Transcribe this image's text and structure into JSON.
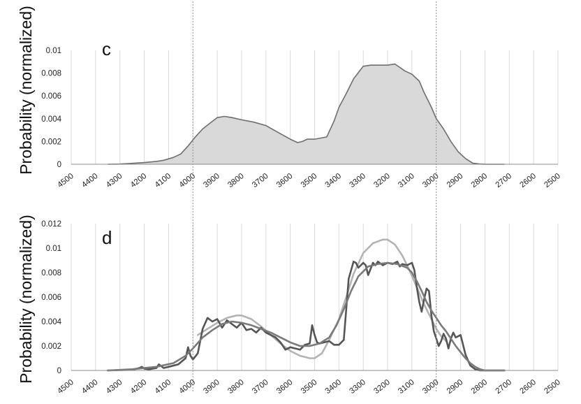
{
  "chart_data": [
    {
      "type": "area",
      "panel_label": "c",
      "ylabel": "Probability (normalized)",
      "xlim": [
        4500,
        2500
      ],
      "x_reversed": true,
      "ylim": [
        0,
        0.01
      ],
      "xticks": [
        "4500",
        "4400",
        "4300",
        "4200",
        "4100",
        "4000",
        "3900",
        "3800",
        "3700",
        "3600",
        "3500",
        "3400",
        "3300",
        "3200",
        "3100",
        "3000",
        "2900",
        "2800",
        "2700",
        "2600",
        "2500"
      ],
      "yticks": [
        "0",
        "0.002",
        "0.004",
        "0.006",
        "0.008",
        "0.01"
      ],
      "grid": "vertical",
      "reference_lines_x": [
        4000,
        3000
      ],
      "fill_color": "#d9d9d9",
      "line_color": "#6e6e6e",
      "series": [
        {
          "x": [
            4350,
            4300,
            4250,
            4200,
            4150,
            4120,
            4080,
            4050,
            4020,
            3990,
            3960,
            3930,
            3900,
            3870,
            3840,
            3800,
            3750,
            3700,
            3650,
            3600,
            3570,
            3550,
            3530,
            3500,
            3450,
            3420,
            3400,
            3370,
            3340,
            3300,
            3270,
            3250,
            3230,
            3200,
            3170,
            3150,
            3130,
            3100,
            3070,
            3050,
            3020,
            3000,
            2970,
            2940,
            2910,
            2880,
            2850,
            2820,
            2790,
            2760,
            2720
          ],
          "y": [
            0,
            2e-05,
            8e-05,
            0.00015,
            0.00025,
            0.00035,
            0.0006,
            0.0009,
            0.0016,
            0.0024,
            0.0031,
            0.0036,
            0.0041,
            0.0042,
            0.0041,
            0.0039,
            0.0037,
            0.0034,
            0.0028,
            0.0022,
            0.0019,
            0.002,
            0.0022,
            0.0022,
            0.0024,
            0.0038,
            0.005,
            0.0062,
            0.0075,
            0.0086,
            0.0087,
            0.0087,
            0.0087,
            0.0087,
            0.0088,
            0.0085,
            0.0082,
            0.0079,
            0.0073,
            0.0063,
            0.005,
            0.004,
            0.0031,
            0.002,
            0.0011,
            0.0005,
            0.0001,
            2e-05,
            0,
            0,
            0
          ]
        }
      ]
    },
    {
      "type": "line",
      "panel_label": "d",
      "ylabel": "Probability (normalized)",
      "xlim": [
        4500,
        2500
      ],
      "x_reversed": true,
      "ylim": [
        0,
        0.012
      ],
      "xticks": [
        "4500",
        "4400",
        "4300",
        "4200",
        "4100",
        "4000",
        "3900",
        "3800",
        "3700",
        "3600",
        "3500",
        "3400",
        "3300",
        "3200",
        "3100",
        "3000",
        "2900",
        "2800",
        "2700",
        "2600",
        "2500"
      ],
      "yticks": [
        "0",
        "0.002",
        "0.004",
        "0.006",
        "0.008",
        "0.01",
        "0.012"
      ],
      "grid": "vertical",
      "reference_lines_x": [
        4000,
        3000
      ],
      "series": [
        {
          "color": "#b3b3b3",
          "x": [
            3980,
            3940,
            3900,
            3860,
            3820,
            3800,
            3760,
            3720,
            3680,
            3640,
            3600,
            3560,
            3520,
            3500,
            3470,
            3440,
            3400,
            3370,
            3340,
            3300,
            3260,
            3220,
            3200,
            3170,
            3140,
            3110,
            3080,
            3050,
            3020,
            3000,
            2980,
            2960
          ],
          "y": [
            0.0029,
            0.0034,
            0.0039,
            0.0043,
            0.0045,
            0.0045,
            0.0042,
            0.0036,
            0.0029,
            0.0022,
            0.0016,
            0.0012,
            0.001,
            0.001,
            0.0014,
            0.0025,
            0.0042,
            0.006,
            0.0079,
            0.0096,
            0.0104,
            0.0107,
            0.0107,
            0.0103,
            0.0094,
            0.0082,
            0.0068,
            0.0054,
            0.0042,
            0.0034,
            0.0028,
            0.0024
          ]
        },
        {
          "color": "#555555",
          "x": [
            4350,
            4250,
            4220,
            4210,
            4200,
            4180,
            4150,
            4140,
            4120,
            4100,
            4060,
            4030,
            4020,
            4010,
            4000,
            3980,
            3960,
            3940,
            3920,
            3900,
            3880,
            3860,
            3840,
            3820,
            3800,
            3780,
            3760,
            3740,
            3720,
            3700,
            3680,
            3660,
            3640,
            3620,
            3600,
            3580,
            3560,
            3540,
            3520,
            3510,
            3500,
            3490,
            3480,
            3460,
            3440,
            3420,
            3400,
            3380,
            3360,
            3340,
            3330,
            3320,
            3300,
            3290,
            3280,
            3260,
            3250,
            3240,
            3220,
            3200,
            3180,
            3160,
            3150,
            3140,
            3120,
            3100,
            3090,
            3080,
            3070,
            3060,
            3050,
            3040,
            3030,
            3020,
            3010,
            3000,
            2990,
            2980,
            2970,
            2960,
            2950,
            2940,
            2930,
            2920,
            2900,
            2880,
            2860,
            2840,
            2820,
            2790,
            2720
          ],
          "y": [
            0,
            5e-05,
            0.0002,
            0.0003,
            0.00015,
            0.0001,
            0.0002,
            0.0005,
            0.0002,
            0.0003,
            0.0005,
            0.001,
            0.0019,
            0.0012,
            0.0009,
            0.0014,
            0.0034,
            0.0043,
            0.004,
            0.0042,
            0.0035,
            0.0041,
            0.0038,
            0.0035,
            0.0039,
            0.0033,
            0.0034,
            0.0031,
            0.0035,
            0.0031,
            0.0029,
            0.0027,
            0.0023,
            0.0017,
            0.0019,
            0.0018,
            0.0017,
            0.0021,
            0.0022,
            0.0037,
            0.0029,
            0.0023,
            0.0022,
            0.0023,
            0.0024,
            0.0021,
            0.0021,
            0.0025,
            0.0075,
            0.0089,
            0.0088,
            0.0084,
            0.0088,
            0.0086,
            0.0078,
            0.0088,
            0.0086,
            0.0089,
            0.0086,
            0.0088,
            0.0087,
            0.0089,
            0.0085,
            0.0087,
            0.0086,
            0.0088,
            0.0082,
            0.0068,
            0.0056,
            0.0048,
            0.0058,
            0.0067,
            0.0065,
            0.0045,
            0.0032,
            0.0026,
            0.002,
            0.0024,
            0.003,
            0.0026,
            0.0018,
            0.0026,
            0.0031,
            0.0027,
            0.0029,
            0.0013,
            0.0004,
            0.0001,
            0,
            0,
            0
          ]
        },
        {
          "color": "#7a7a7a",
          "x": [
            4350,
            4250,
            4150,
            4080,
            4030,
            4000,
            3960,
            3920,
            3880,
            3840,
            3800,
            3760,
            3720,
            3680,
            3640,
            3600,
            3560,
            3520,
            3480,
            3440,
            3410,
            3380,
            3350,
            3320,
            3280,
            3240,
            3200,
            3160,
            3120,
            3100,
            3080,
            3060,
            3040,
            3020,
            3000,
            2980,
            2960,
            2940,
            2920,
            2900,
            2880,
            2860,
            2840,
            2820,
            2800,
            2760,
            2720
          ],
          "y": [
            0,
            0.0001,
            0.0003,
            0.0006,
            0.0012,
            0.0018,
            0.0027,
            0.0033,
            0.0038,
            0.004,
            0.0039,
            0.0037,
            0.0034,
            0.0031,
            0.0027,
            0.0023,
            0.002,
            0.002,
            0.0022,
            0.0027,
            0.0037,
            0.005,
            0.0065,
            0.0077,
            0.0085,
            0.0087,
            0.0088,
            0.0087,
            0.0084,
            0.008,
            0.0073,
            0.0065,
            0.0056,
            0.0049,
            0.0043,
            0.0037,
            0.0032,
            0.0026,
            0.002,
            0.0015,
            0.001,
            0.0006,
            0.0003,
            0.0001,
            0,
            0,
            0
          ]
        }
      ]
    }
  ]
}
